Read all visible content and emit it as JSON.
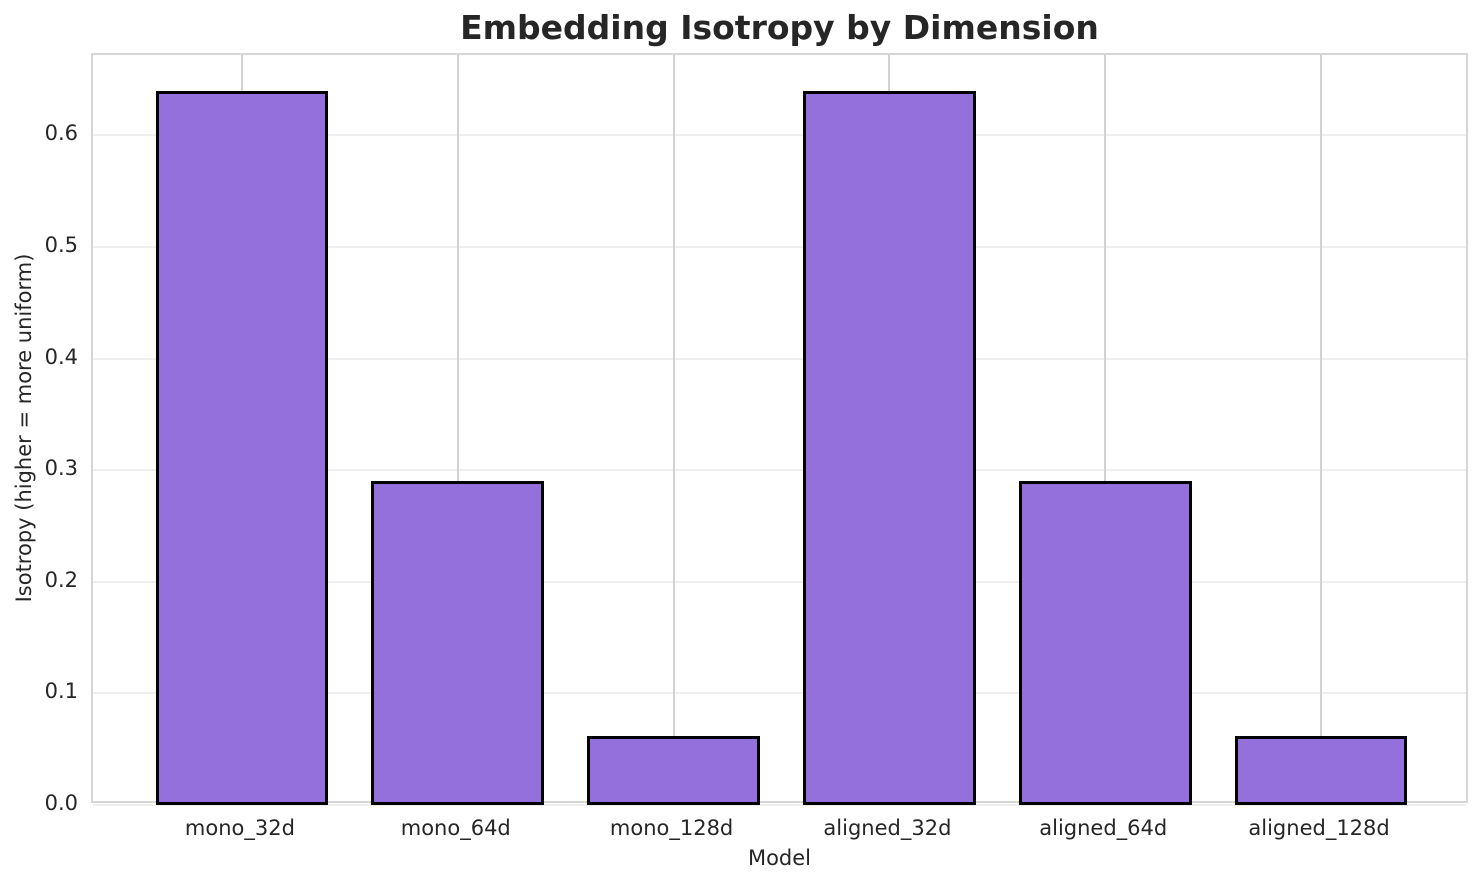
{
  "figure": {
    "background": "#ffffff",
    "text_color": "#262626"
  },
  "chart_data": {
    "type": "bar",
    "title": "Embedding Isotropy by Dimension",
    "xlabel": "Model",
    "ylabel": "Isotropy (higher = more uniform)",
    "categories": [
      "mono_32d",
      "mono_64d",
      "mono_128d",
      "aligned_32d",
      "aligned_64d",
      "aligned_128d"
    ],
    "values": [
      0.64,
      0.29,
      0.062,
      0.64,
      0.29,
      0.062
    ],
    "ytick_values": [
      0.0,
      0.1,
      0.2,
      0.3,
      0.4,
      0.5,
      0.6
    ],
    "ytick_labels": [
      "0.0",
      "0.1",
      "0.2",
      "0.3",
      "0.4",
      "0.5",
      "0.6"
    ],
    "ylim": [
      0,
      0.672
    ],
    "xlim": [
      -0.69,
      5.69
    ],
    "bar_width_units": 0.8,
    "bar_fill_color": "#9370DB",
    "bar_edge_color": "#000000",
    "grid": true,
    "legend": null,
    "spine_color": "#d6d6d6",
    "gridline_h_color": "#efefef",
    "gridline_v_color": "#d2d2d2"
  }
}
